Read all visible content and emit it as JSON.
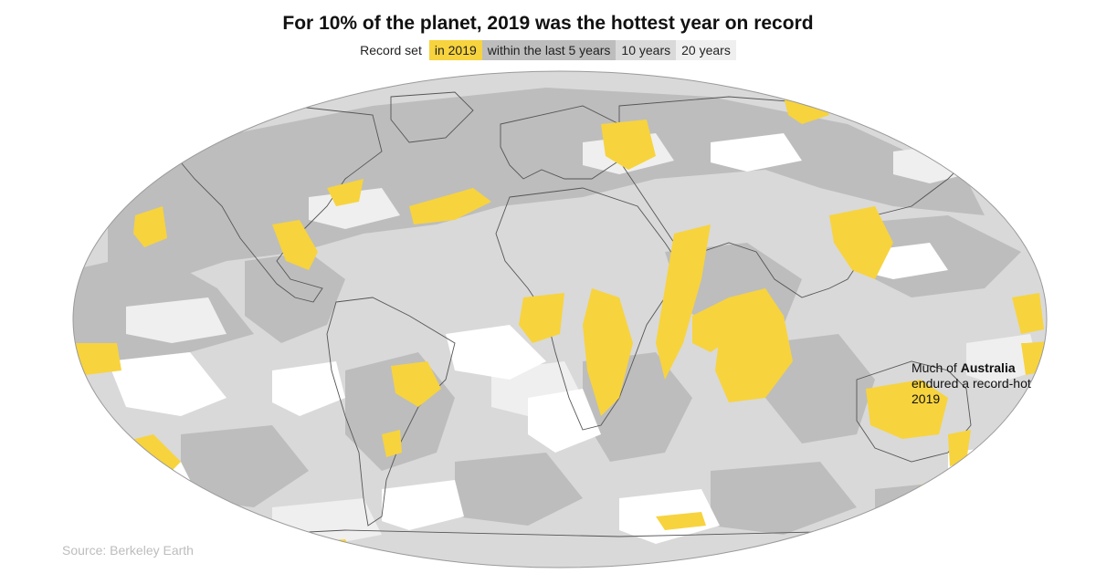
{
  "title": "For 10% of the planet, 2019 was the hottest year on record",
  "legend": {
    "lead": "Record set",
    "items": [
      {
        "label": "in 2019",
        "color": "#f7d33e"
      },
      {
        "label": "within the last 5 years",
        "color": "#bdbdbd"
      },
      {
        "label": "10 years",
        "color": "#d9d9d9"
      },
      {
        "label": "20 years",
        "color": "#efefef"
      }
    ]
  },
  "annotation": {
    "prefix": "Much of ",
    "emphasis": "Australia",
    "suffix": " endured a record-hot 2019"
  },
  "source": "Source: Berkeley Earth",
  "colors": {
    "record_2019": "#f7d33e",
    "last_5_years": "#bdbdbd",
    "ten_years": "#d9d9d9",
    "twenty_years": "#efefef",
    "no_record": "#ffffff",
    "borders": "#555555"
  }
}
